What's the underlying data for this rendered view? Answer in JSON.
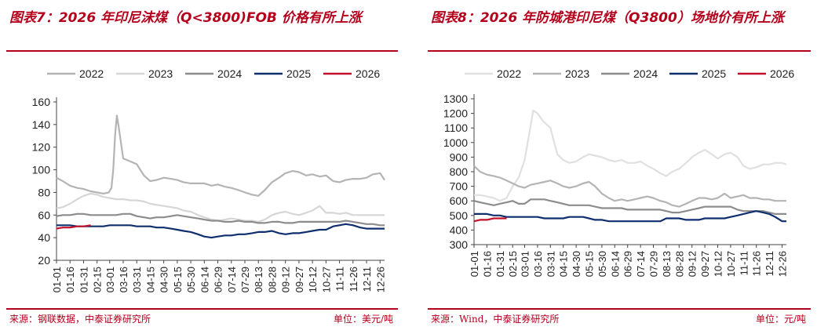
{
  "chart_data": [
    {
      "type": "line",
      "title": "图表7：2026 年印尼沫煤（Q<3800)FOB 价格有所上涨",
      "source": "来源：钢联数据，中泰证券研究所",
      "unit": "单位：美元/吨",
      "ylim": [
        20,
        160
      ],
      "yticks": [
        20,
        40,
        60,
        80,
        100,
        120,
        140,
        160
      ],
      "xticks": [
        "01-01",
        "01-16",
        "01-31",
        "02-15",
        "03-01",
        "03-16",
        "03-31",
        "04-15",
        "04-30",
        "05-15",
        "05-30",
        "06-14",
        "06-29",
        "07-14",
        "07-29",
        "08-13",
        "08-28",
        "09-12",
        "09-27",
        "10-12",
        "10-27",
        "11-11",
        "11-26",
        "12-11",
        "12-26"
      ],
      "legend_position": "top",
      "grid": false,
      "series": [
        {
          "name": "2022",
          "color": "#b4b4b4",
          "x": [
            "01-01",
            "01-08",
            "01-16",
            "01-24",
            "01-31",
            "02-08",
            "02-15",
            "02-22",
            "02-28",
            "03-03",
            "03-05",
            "03-07",
            "03-09",
            "03-11",
            "03-16",
            "03-22",
            "03-31",
            "04-08",
            "04-15",
            "04-22",
            "04-30",
            "05-08",
            "05-15",
            "05-22",
            "05-30",
            "06-07",
            "06-14",
            "06-22",
            "06-29",
            "07-07",
            "07-14",
            "07-22",
            "07-29",
            "08-06",
            "08-13",
            "08-20",
            "08-28",
            "09-05",
            "09-12",
            "09-20",
            "09-27",
            "10-05",
            "10-12",
            "10-20",
            "10-27",
            "11-04",
            "11-11",
            "11-18",
            "11-26",
            "12-04",
            "12-11",
            "12-18",
            "12-26",
            "12-31"
          ],
          "values": [
            93,
            90,
            86,
            84,
            83,
            81,
            80,
            79,
            80,
            84,
            100,
            130,
            148,
            138,
            110,
            108,
            105,
            95,
            90,
            91,
            93,
            92,
            91,
            89,
            88,
            88,
            88,
            86,
            87,
            85,
            84,
            82,
            80,
            78,
            77,
            82,
            89,
            93,
            97,
            99,
            98,
            95,
            96,
            94,
            95,
            90,
            89,
            91,
            92,
            92,
            93,
            96,
            97,
            91
          ]
        },
        {
          "name": "2023",
          "color": "#d6d6d6",
          "x": [
            "01-01",
            "01-08",
            "01-16",
            "01-24",
            "01-31",
            "02-08",
            "02-15",
            "02-22",
            "03-01",
            "03-08",
            "03-16",
            "03-24",
            "03-31",
            "04-08",
            "04-15",
            "04-22",
            "04-30",
            "05-08",
            "05-15",
            "05-22",
            "05-30",
            "06-07",
            "06-14",
            "06-22",
            "06-29",
            "07-07",
            "07-14",
            "07-22",
            "07-29",
            "08-06",
            "08-13",
            "08-20",
            "08-28",
            "09-05",
            "09-12",
            "09-20",
            "09-27",
            "10-05",
            "10-12",
            "10-20",
            "10-27",
            "11-04",
            "11-11",
            "11-18",
            "11-26",
            "12-04",
            "12-11",
            "12-18",
            "12-26",
            "12-31"
          ],
          "values": [
            66,
            67,
            70,
            74,
            77,
            79,
            78,
            76,
            75,
            74,
            74,
            73,
            73,
            72,
            70,
            69,
            68,
            67,
            66,
            64,
            63,
            60,
            58,
            56,
            55,
            56,
            57,
            56,
            55,
            55,
            54,
            56,
            60,
            62,
            63,
            61,
            60,
            62,
            64,
            68,
            62,
            62,
            61,
            62,
            60,
            60,
            60,
            60,
            60,
            60
          ]
        },
        {
          "name": "2024",
          "color": "#8c8c8c",
          "x": [
            "01-01",
            "01-08",
            "01-16",
            "01-24",
            "01-31",
            "02-08",
            "02-15",
            "02-22",
            "03-01",
            "03-08",
            "03-16",
            "03-24",
            "03-31",
            "04-08",
            "04-15",
            "04-22",
            "04-30",
            "05-08",
            "05-15",
            "05-22",
            "05-30",
            "06-07",
            "06-14",
            "06-22",
            "06-29",
            "07-07",
            "07-14",
            "07-22",
            "07-29",
            "08-06",
            "08-13",
            "08-20",
            "08-28",
            "09-05",
            "09-12",
            "09-20",
            "09-27",
            "10-05",
            "10-12",
            "10-20",
            "10-27",
            "11-04",
            "11-11",
            "11-18",
            "11-26",
            "12-04",
            "12-11",
            "12-18",
            "12-26",
            "12-31"
          ],
          "values": [
            59,
            60,
            60,
            61,
            61,
            60,
            60,
            60,
            60,
            60,
            61,
            61,
            59,
            58,
            57,
            58,
            58,
            59,
            60,
            59,
            58,
            57,
            56,
            55,
            55,
            54,
            54,
            55,
            54,
            54,
            53,
            53,
            54,
            54,
            53,
            53,
            54,
            54,
            54,
            54,
            54,
            54,
            54,
            55,
            54,
            53,
            52,
            52,
            51,
            51
          ]
        },
        {
          "name": "2025",
          "color": "#0f2e6e",
          "x": [
            "01-01",
            "01-08",
            "01-16",
            "01-24",
            "01-31",
            "02-08",
            "02-15",
            "02-22",
            "03-01",
            "03-08",
            "03-16",
            "03-24",
            "03-31",
            "04-08",
            "04-15",
            "04-22",
            "04-30",
            "05-08",
            "05-15",
            "05-22",
            "05-30",
            "06-07",
            "06-14",
            "06-22",
            "06-29",
            "07-07",
            "07-14",
            "07-22",
            "07-29",
            "08-06",
            "08-13",
            "08-20",
            "08-28",
            "09-05",
            "09-12",
            "09-20",
            "09-27",
            "10-05",
            "10-12",
            "10-20",
            "10-27",
            "11-04",
            "11-11",
            "11-18",
            "11-26",
            "12-04",
            "12-11",
            "12-18",
            "12-26",
            "12-31"
          ],
          "values": [
            51,
            51,
            51,
            50,
            50,
            50,
            50,
            50,
            51,
            51,
            51,
            51,
            50,
            50,
            50,
            49,
            49,
            48,
            47,
            46,
            45,
            43,
            41,
            40,
            41,
            42,
            42,
            43,
            43,
            44,
            45,
            45,
            46,
            44,
            43,
            44,
            44,
            45,
            46,
            47,
            47,
            50,
            51,
            52,
            51,
            49,
            48,
            48,
            48,
            48
          ]
        },
        {
          "name": "2026",
          "color": "#c0102c",
          "x": [
            "01-01",
            "01-08",
            "01-16",
            "01-24",
            "01-31",
            "02-08"
          ],
          "values": [
            48,
            49,
            49,
            50,
            50,
            51
          ]
        }
      ]
    },
    {
      "type": "line",
      "title": "图表8：2026 年防城港印尼煤（Q3800）场地价有所上涨",
      "source": "来源：Wind，中泰证券研究所",
      "unit": "单位：元/吨",
      "ylim": [
        300,
        1300
      ],
      "yticks": [
        300,
        400,
        500,
        600,
        700,
        800,
        900,
        1000,
        1100,
        1200,
        1300
      ],
      "xticks": [
        "01-01",
        "01-16",
        "01-31",
        "02-15",
        "03-01",
        "03-16",
        "03-31",
        "04-15",
        "04-30",
        "05-15",
        "05-30",
        "06-14",
        "06-29",
        "07-14",
        "07-29",
        "08-13",
        "08-28",
        "09-12",
        "09-27",
        "10-12",
        "10-27",
        "11-11",
        "11-26",
        "12-11",
        "12-26"
      ],
      "legend_position": "top",
      "grid": false,
      "series": [
        {
          "name": "2022",
          "color": "#e0e0e0",
          "x": [
            "01-01",
            "01-08",
            "01-16",
            "01-24",
            "01-31",
            "02-08",
            "02-15",
            "02-22",
            "03-01",
            "03-06",
            "03-11",
            "03-16",
            "03-22",
            "03-31",
            "04-08",
            "04-15",
            "04-22",
            "04-30",
            "05-08",
            "05-15",
            "05-22",
            "05-30",
            "06-07",
            "06-14",
            "06-22",
            "06-29",
            "07-07",
            "07-14",
            "07-22",
            "07-29",
            "08-06",
            "08-13",
            "08-20",
            "08-28",
            "09-05",
            "09-12",
            "09-20",
            "09-27",
            "10-05",
            "10-12",
            "10-20",
            "10-27",
            "11-04",
            "11-11",
            "11-18",
            "11-26",
            "12-04",
            "12-11",
            "12-18",
            "12-26",
            "12-31"
          ],
          "values": [
            640,
            640,
            630,
            620,
            600,
            620,
            700,
            760,
            880,
            1050,
            1220,
            1200,
            1150,
            1100,
            920,
            880,
            860,
            870,
            900,
            920,
            910,
            900,
            880,
            870,
            880,
            860,
            860,
            870,
            840,
            820,
            790,
            770,
            800,
            820,
            860,
            900,
            930,
            950,
            920,
            890,
            920,
            930,
            900,
            840,
            820,
            830,
            850,
            850,
            860,
            860,
            850
          ]
        },
        {
          "name": "2023",
          "color": "#b4b4b4",
          "x": [
            "01-01",
            "01-08",
            "01-16",
            "01-24",
            "01-31",
            "02-08",
            "02-15",
            "02-22",
            "03-01",
            "03-08",
            "03-16",
            "03-24",
            "03-31",
            "04-08",
            "04-15",
            "04-22",
            "04-30",
            "05-08",
            "05-15",
            "05-22",
            "05-30",
            "06-07",
            "06-14",
            "06-22",
            "06-29",
            "07-07",
            "07-14",
            "07-22",
            "07-29",
            "08-06",
            "08-13",
            "08-20",
            "08-28",
            "09-05",
            "09-12",
            "09-20",
            "09-27",
            "10-05",
            "10-12",
            "10-20",
            "10-27",
            "11-04",
            "11-11",
            "11-18",
            "11-26",
            "12-04",
            "12-11",
            "12-18",
            "12-26",
            "12-31"
          ],
          "values": [
            840,
            800,
            780,
            770,
            760,
            740,
            720,
            700,
            690,
            710,
            720,
            730,
            740,
            720,
            700,
            690,
            700,
            720,
            730,
            700,
            650,
            620,
            600,
            610,
            600,
            610,
            620,
            630,
            620,
            600,
            590,
            570,
            560,
            580,
            600,
            620,
            620,
            610,
            620,
            650,
            620,
            630,
            640,
            620,
            620,
            610,
            610,
            600,
            600,
            600
          ]
        },
        {
          "name": "2024",
          "color": "#8c8c8c",
          "x": [
            "01-01",
            "01-08",
            "01-16",
            "01-24",
            "01-31",
            "02-08",
            "02-15",
            "02-22",
            "03-01",
            "03-08",
            "03-16",
            "03-24",
            "03-31",
            "04-08",
            "04-15",
            "04-22",
            "04-30",
            "05-08",
            "05-15",
            "05-22",
            "05-30",
            "06-07",
            "06-14",
            "06-22",
            "06-29",
            "07-07",
            "07-14",
            "07-22",
            "07-29",
            "08-06",
            "08-13",
            "08-20",
            "08-28",
            "09-05",
            "09-12",
            "09-20",
            "09-27",
            "10-05",
            "10-12",
            "10-20",
            "10-27",
            "11-04",
            "11-11",
            "11-18",
            "11-26",
            "12-04",
            "12-11",
            "12-18",
            "12-26",
            "12-31"
          ],
          "values": [
            600,
            590,
            580,
            570,
            580,
            590,
            600,
            580,
            580,
            610,
            610,
            610,
            600,
            590,
            580,
            570,
            570,
            570,
            570,
            560,
            550,
            550,
            550,
            550,
            540,
            540,
            540,
            540,
            540,
            540,
            530,
            520,
            520,
            530,
            540,
            550,
            560,
            560,
            560,
            560,
            560,
            540,
            530,
            530,
            530,
            530,
            520,
            510,
            510,
            510
          ]
        },
        {
          "name": "2025",
          "color": "#0f2e6e",
          "x": [
            "01-01",
            "01-08",
            "01-16",
            "01-24",
            "01-31",
            "02-08",
            "02-15",
            "02-22",
            "03-01",
            "03-08",
            "03-16",
            "03-24",
            "03-31",
            "04-08",
            "04-15",
            "04-22",
            "04-30",
            "05-08",
            "05-15",
            "05-22",
            "05-30",
            "06-07",
            "06-14",
            "06-22",
            "06-29",
            "07-07",
            "07-14",
            "07-22",
            "07-29",
            "08-06",
            "08-13",
            "08-20",
            "08-28",
            "09-05",
            "09-12",
            "09-20",
            "09-27",
            "10-05",
            "10-12",
            "10-20",
            "10-27",
            "11-04",
            "11-11",
            "11-18",
            "11-26",
            "12-04",
            "12-11",
            "12-18",
            "12-26",
            "12-31"
          ],
          "values": [
            510,
            510,
            510,
            500,
            500,
            490,
            490,
            490,
            490,
            490,
            490,
            480,
            480,
            480,
            480,
            490,
            490,
            490,
            480,
            470,
            470,
            460,
            460,
            460,
            460,
            460,
            460,
            460,
            460,
            460,
            480,
            480,
            480,
            470,
            470,
            470,
            480,
            480,
            480,
            480,
            490,
            500,
            510,
            520,
            530,
            520,
            510,
            490,
            460,
            460
          ]
        },
        {
          "name": "2026",
          "color": "#c0102c",
          "x": [
            "01-01",
            "01-08",
            "01-16",
            "01-24",
            "01-31",
            "02-08"
          ],
          "values": [
            460,
            470,
            470,
            480,
            480,
            480
          ]
        }
      ]
    }
  ]
}
